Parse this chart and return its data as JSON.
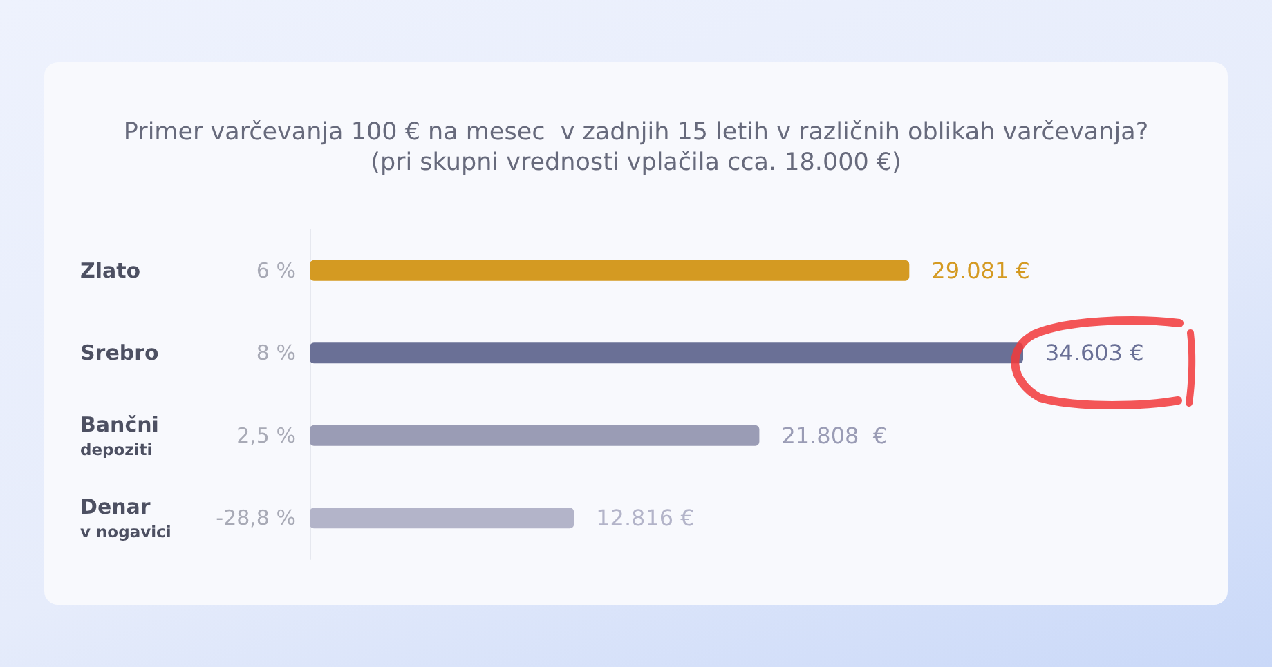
{
  "chart_data": {
    "type": "bar",
    "orientation": "horizontal",
    "title": "Primer varčevanja 100 € na mesec  v zadnjih 15 letih v različnih oblikah varčevanja?",
    "subtitle": "(pri skupni vrednosti vplačila cca. 18.000 €)",
    "categories": [
      "Zlato",
      "Srebro",
      "Bančni\ndepoziti",
      "Denar\nv nogavici"
    ],
    "y2_categories": [
      "6 %",
      "8 %",
      "2,5 %",
      "-28,8 %"
    ],
    "values": [
      29081,
      34603,
      21808,
      12816
    ],
    "colors": [
      "#d49a22",
      "#6a7096",
      "#9a9cb5",
      "#b3b4c9"
    ],
    "value_labels": [
      "29.081 €",
      "34.603 €",
      "21.808  €",
      "12.816 €"
    ]
  }
}
